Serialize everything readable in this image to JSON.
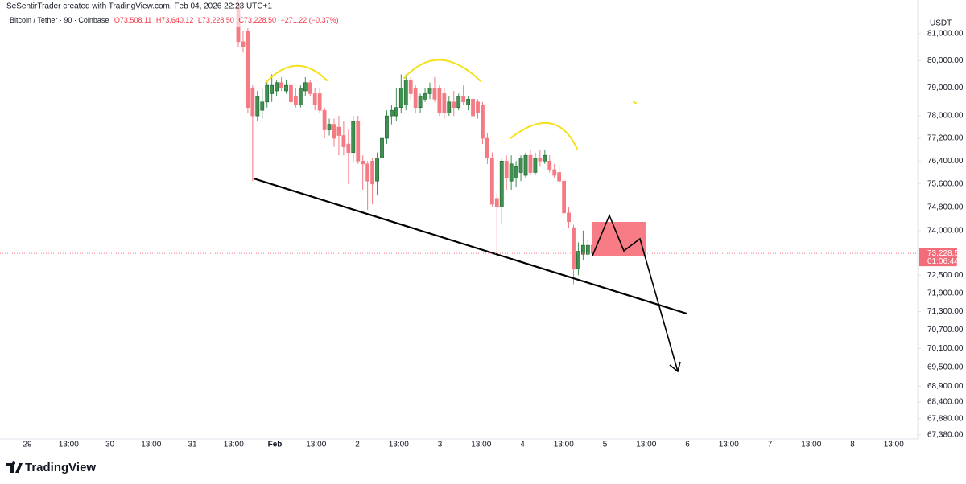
{
  "chart_data": {
    "type": "candlestick",
    "header": "SeSentirTrader created with TradingView.com, Feb 04, 2026 22:23 UTC+1",
    "legend": {
      "symbol": "Bitcoin / Tether · 90 · Coinbase",
      "open": "O73,508.11",
      "high": "H73,640.12",
      "low": "L73,228.50",
      "close": "C73,228.50",
      "change": "−271.22 (−0.37%)"
    },
    "currency": "USDT",
    "brand": "TradingView",
    "up_color": "#3f9152",
    "down_color": "#f47a83",
    "yscale": "log",
    "ylim": [
      67200,
      82260
    ],
    "yticks": [
      {
        "value": 81000,
        "label": "81,000.00"
      },
      {
        "value": 80000,
        "label": "80,000.00"
      },
      {
        "value": 79000,
        "label": "79,000.00"
      },
      {
        "value": 78000,
        "label": "78,000.00"
      },
      {
        "value": 77200,
        "label": "77,200.00"
      },
      {
        "value": 76400,
        "label": "76,400.00"
      },
      {
        "value": 75600,
        "label": "75,600.00"
      },
      {
        "value": 74800,
        "label": "74,800.00"
      },
      {
        "value": 74000,
        "label": "74,000.00"
      },
      {
        "value": 72500,
        "label": "72,500.00"
      },
      {
        "value": 71900,
        "label": "71,900.00"
      },
      {
        "value": 71300,
        "label": "71,300.00"
      },
      {
        "value": 70700,
        "label": "70,700.00"
      },
      {
        "value": 70100,
        "label": "70,100.00"
      },
      {
        "value": 69500,
        "label": "69,500.00"
      },
      {
        "value": 68900,
        "label": "68,900.00"
      },
      {
        "value": 68400,
        "label": "68,400.00"
      },
      {
        "value": 67880,
        "label": "67,880.00"
      },
      {
        "value": 67380,
        "label": "67,380.00"
      }
    ],
    "last_price": {
      "value": 73228.5,
      "label": "73,228.50"
    },
    "countdown": "01:06:44",
    "x_labels": [
      "29",
      "13:00",
      "30",
      "13:00",
      "31",
      "13:00",
      "Feb",
      "13:00",
      "2",
      "13:00",
      "3",
      "13:00",
      "4",
      "13:00",
      "5",
      "13:00",
      "6",
      "13:00",
      "7",
      "13:00",
      "8",
      "13:00"
    ],
    "open": [
      82100,
      80700,
      81100,
      79000,
      78000,
      78200,
      78500,
      78800,
      78900,
      79200,
      78900,
      79100,
      78700,
      78400,
      78900,
      79200,
      78800,
      78800,
      78200,
      77500,
      77700,
      77600,
      77300,
      77000,
      76700,
      77800,
      76400,
      76300,
      76400,
      75700,
      76500,
      77200,
      78000,
      78000,
      78300,
      78400,
      79300,
      79000,
      78300,
      78600,
      78800,
      79000,
      79000,
      78800,
      78100,
      78500,
      78300,
      78700,
      78400,
      78600,
      78500,
      78400,
      77200,
      76500,
      75100,
      74800,
      76400,
      75700,
      75800,
      76000,
      75900,
      76600,
      76000,
      76500,
      76400,
      76400,
      76100,
      76000,
      75700,
      74600,
      74100,
      72700,
      73200,
      73200,
      73508.11
    ],
    "high": [
      82400,
      81100,
      81200,
      79100,
      78900,
      79000,
      79300,
      79500,
      79300,
      79400,
      79300,
      79300,
      79000,
      79100,
      79400,
      79300,
      79000,
      79000,
      78300,
      77900,
      77900,
      78000,
      77800,
      77500,
      78000,
      78000,
      76600,
      76400,
      76500,
      76700,
      77400,
      78200,
      78400,
      79000,
      79500,
      79500,
      79400,
      79100,
      78800,
      79000,
      79200,
      79400,
      79100,
      79000,
      78700,
      78900,
      78800,
      79100,
      78700,
      78700,
      78600,
      78500,
      77400,
      76700,
      75300,
      76500,
      76600,
      76600,
      76400,
      76600,
      76700,
      76800,
      76700,
      76800,
      76800,
      76600,
      76300,
      76200,
      75800,
      74800,
      74200,
      73600,
      74000,
      73700,
      73640.12
    ],
    "low": [
      80500,
      80300,
      78100,
      75700,
      77800,
      77900,
      78300,
      78500,
      78700,
      78900,
      78800,
      78300,
      78300,
      78300,
      78700,
      78700,
      78200,
      78100,
      77200,
      77300,
      76900,
      76600,
      76600,
      75600,
      76400,
      76300,
      75400,
      74700,
      74900,
      75200,
      76300,
      77000,
      77700,
      77800,
      78100,
      78200,
      78600,
      78100,
      78100,
      78500,
      78600,
      78500,
      78000,
      77900,
      78000,
      78000,
      78200,
      78400,
      78200,
      77900,
      77900,
      77000,
      76300,
      74800,
      73100,
      74200,
      75400,
      75400,
      75500,
      75700,
      75800,
      75900,
      75900,
      76200,
      76300,
      76000,
      75800,
      75600,
      74500,
      74100,
      72200,
      72500,
      73000,
      73100,
      73228.5
    ],
    "close": [
      80700,
      80500,
      78300,
      78000,
      78700,
      78500,
      79100,
      79100,
      79200,
      79000,
      79100,
      78500,
      78400,
      79000,
      79200,
      78800,
      78400,
      78200,
      77500,
      77700,
      77200,
      77300,
      76900,
      76700,
      77800,
      76400,
      76300,
      75700,
      75600,
      76500,
      77200,
      78000,
      78200,
      78300,
      79000,
      79300,
      78800,
      78300,
      78700,
      78800,
      79000,
      78600,
      78100,
      78100,
      78500,
      78300,
      78700,
      78500,
      78600,
      78000,
      78100,
      77200,
      76500,
      74900,
      74800,
      76400,
      75800,
      76300,
      76200,
      76500,
      76600,
      76000,
      76500,
      76400,
      76600,
      76100,
      75900,
      75700,
      74600,
      74300,
      72700,
      73300,
      73500,
      73500,
      73228.5
    ]
  }
}
